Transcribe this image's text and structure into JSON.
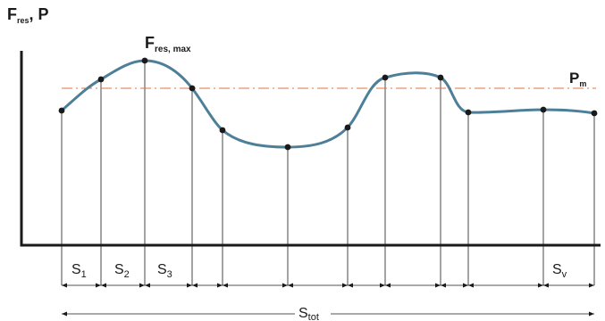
{
  "axis": {
    "y_label": {
      "main": "F",
      "sub": "res",
      "rest": ", P"
    }
  },
  "labels": {
    "peak": {
      "main": "F",
      "sub": "res, max"
    },
    "mean": {
      "main": "P",
      "sub": "m"
    },
    "total": {
      "main": "S",
      "sub": "tot"
    }
  },
  "segments": [
    {
      "main": "S",
      "sub": "1"
    },
    {
      "main": "S",
      "sub": "2"
    },
    {
      "main": "S",
      "sub": "3"
    },
    {
      "main": "S",
      "sub": "v"
    }
  ],
  "colors": {
    "curve": "#4e7f98",
    "mean_line": "#e0703a",
    "ink": "#1a1a1a"
  }
}
